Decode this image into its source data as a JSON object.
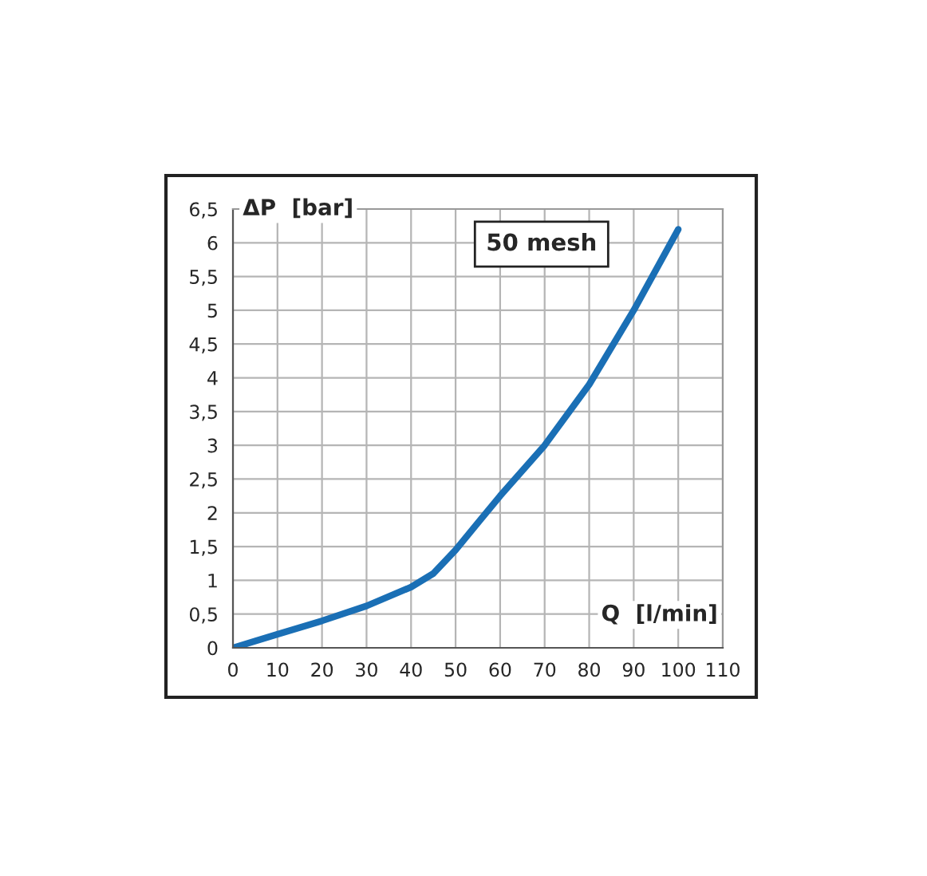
{
  "chart_data": {
    "type": "line",
    "xlabel": "Q  [l/min]",
    "ylabel": "ΔP  [bar]",
    "annotations": [
      "50 mesh"
    ],
    "x": [
      0,
      5,
      10,
      20,
      30,
      40,
      45,
      50,
      55,
      60,
      70,
      80,
      90,
      100
    ],
    "series": [
      {
        "color": "#1a6fb5",
        "values": [
          0,
          0.1,
          0.2,
          0.4,
          0.62,
          0.9,
          1.1,
          1.45,
          1.85,
          2.25,
          3.0,
          3.9,
          5.0,
          6.2
        ]
      }
    ],
    "xlim": [
      0,
      110
    ],
    "xticks": [
      0,
      10,
      20,
      30,
      40,
      50,
      60,
      70,
      80,
      90,
      100,
      110
    ],
    "ylim": [
      0,
      6.5
    ],
    "yticks": [
      0,
      {
        "value": 0.5,
        "label": "0,5"
      },
      1,
      {
        "value": 1.5,
        "label": "1,5"
      },
      2,
      {
        "value": 2.5,
        "label": "2,5"
      },
      3,
      {
        "value": 3.5,
        "label": "3,5"
      },
      4,
      {
        "value": 4.5,
        "label": "4,5"
      },
      5,
      {
        "value": 5.5,
        "label": "5,5"
      },
      6,
      {
        "value": 6.5,
        "label": "6,5"
      }
    ],
    "grid": true,
    "marker": "none",
    "line_style": "solid"
  }
}
